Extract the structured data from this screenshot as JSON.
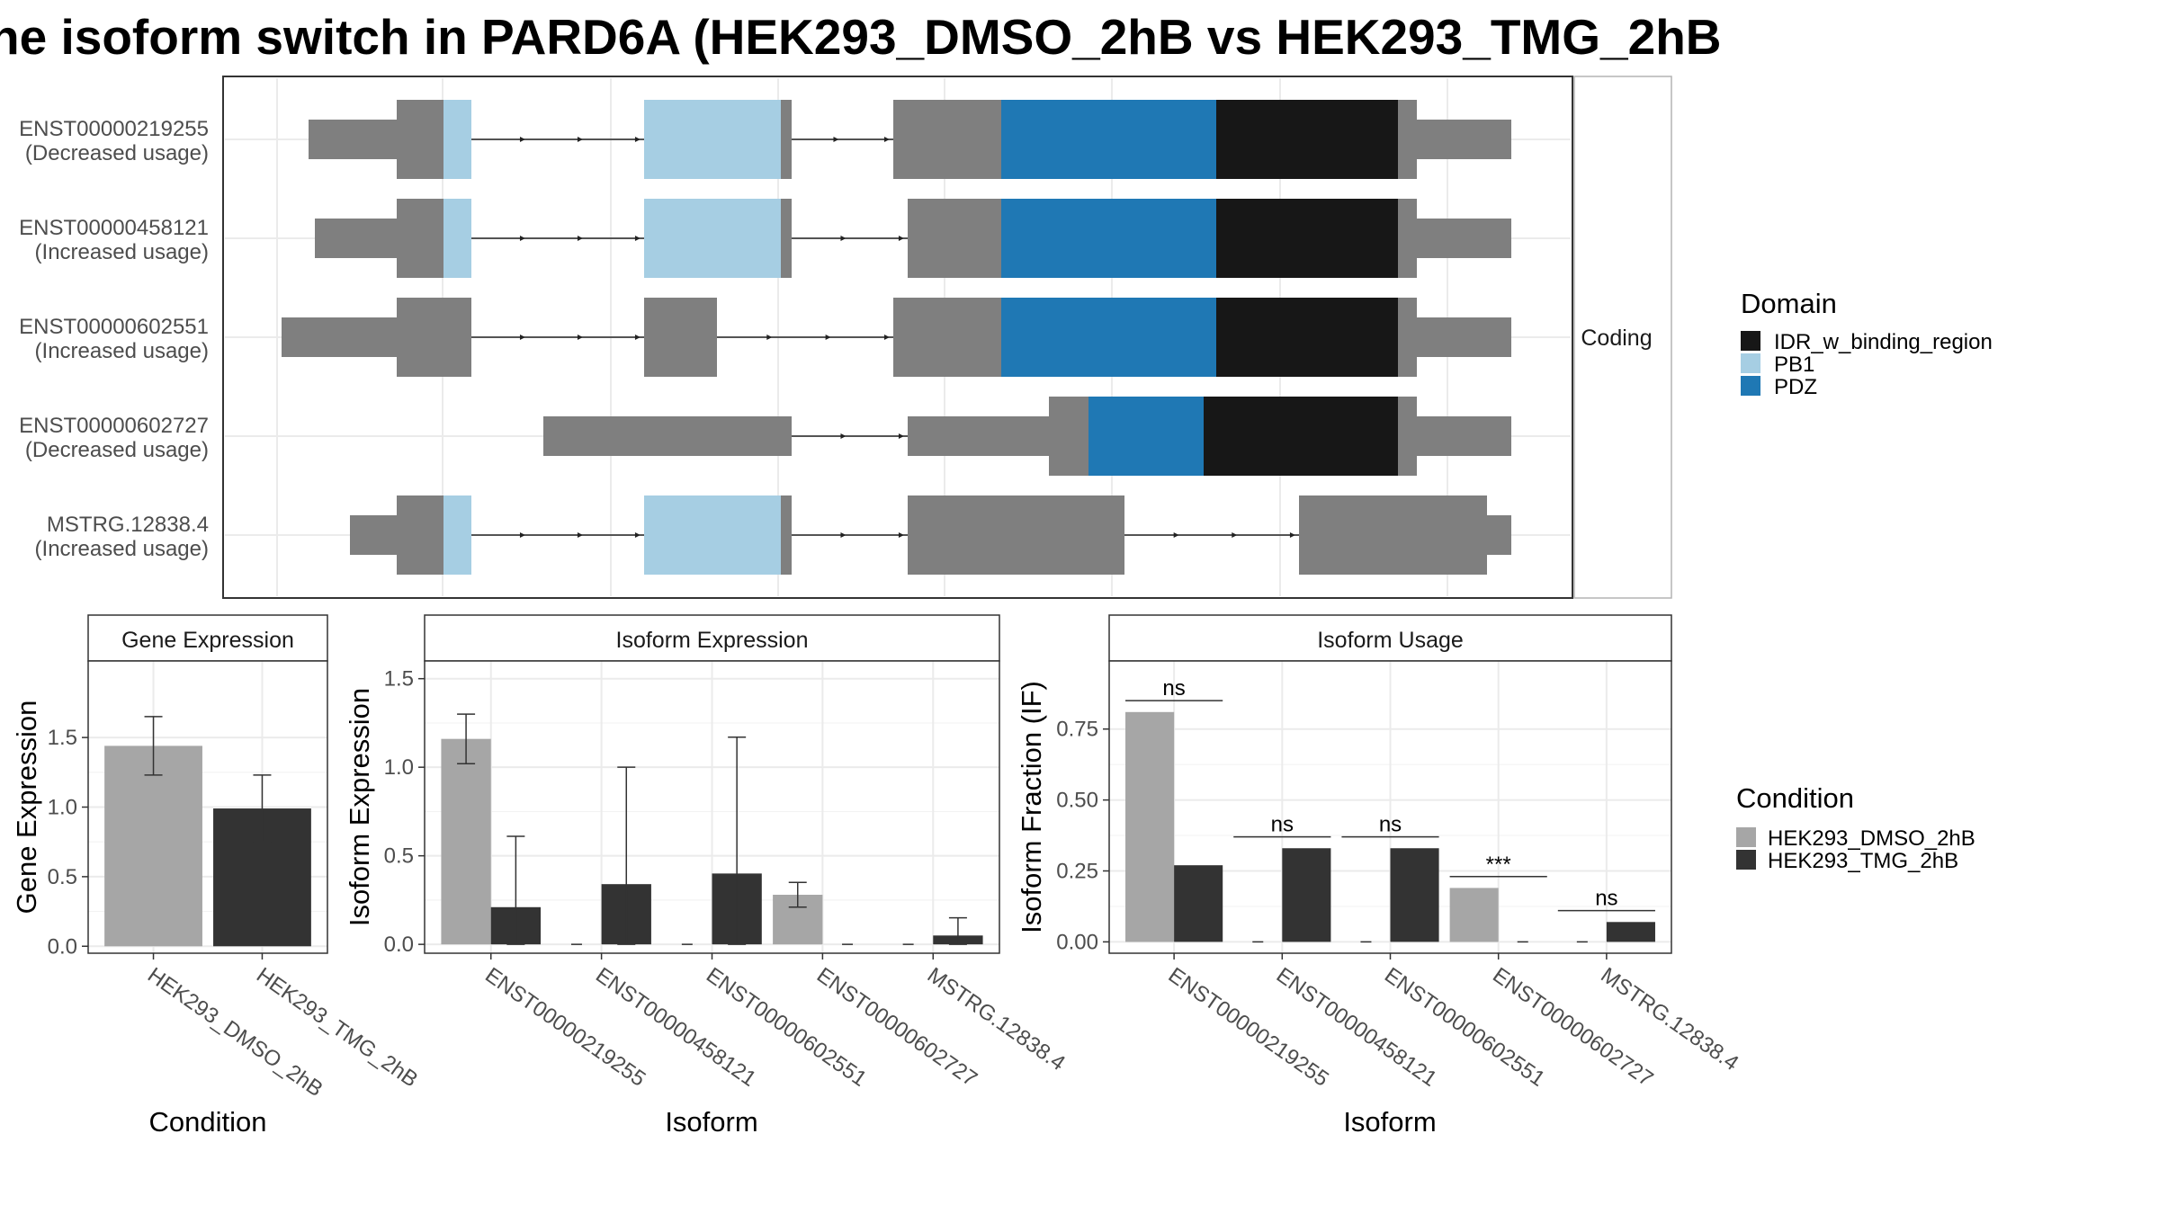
{
  "title": "he isoform switch in PARD6A (HEK293_DMSO_2hB vs HEK293_TMG_2hB",
  "colors": {
    "exon": "#7f7f7f",
    "IDR_w_binding_region": "#171717",
    "PB1": "#a6cee3",
    "PDZ": "#1f78b4",
    "HEK293_DMSO_2hB": "#a6a6a6",
    "HEK293_TMG_2hB": "#333333",
    "grid": "#ebebeb"
  },
  "structure": {
    "facet_label": "Coding",
    "transcripts": [
      {
        "id": "ENST00000219255",
        "usage": "(Decreased usage)"
      },
      {
        "id": "ENST00000458121",
        "usage": "(Increased usage)"
      },
      {
        "id": "ENST00000602551",
        "usage": "(Increased usage)"
      },
      {
        "id": "ENST00000602727",
        "usage": "(Decreased usage)"
      },
      {
        "id": "MSTRG.12838.4",
        "usage": "(Increased usage)"
      }
    ]
  },
  "legends": {
    "domain_title": "Domain",
    "domain_items": [
      "IDR_w_binding_region",
      "PB1",
      "PDZ"
    ],
    "condition_title": "Condition",
    "condition_items": [
      "HEK293_DMSO_2hB",
      "HEK293_TMG_2hB"
    ]
  },
  "chart_data": [
    {
      "type": "bar",
      "panel": "Gene Expression",
      "title": "Gene Expression",
      "xlabel": "Condition",
      "ylabel": "Gene Expression",
      "categories": [
        "HEK293_DMSO_2hB",
        "HEK293_TMG_2hB"
      ],
      "values": [
        1.44,
        0.99
      ],
      "error_low": [
        1.23,
        0.75
      ],
      "error_high": [
        1.65,
        1.23
      ],
      "yticks": [
        0.0,
        0.5,
        1.0,
        1.5
      ],
      "ytick_labels": [
        "0.0",
        "0.5",
        "1.0",
        "1.5"
      ],
      "ylim": [
        -0.05,
        2.05
      ]
    },
    {
      "type": "bar",
      "panel": "Isoform Expression",
      "title": "Isoform Expression",
      "xlabel": "Isoform",
      "ylabel": "Isoform Expression",
      "categories": [
        "ENST00000219255",
        "ENST00000458121",
        "ENST00000602551",
        "ENST00000602727",
        "MSTRG.12838.4"
      ],
      "series": [
        {
          "name": "HEK293_DMSO_2hB",
          "values": [
            1.16,
            0.0,
            0.0,
            0.28,
            0.0
          ],
          "error_low": [
            1.02,
            null,
            null,
            0.21,
            null
          ],
          "error_high": [
            1.3,
            null,
            null,
            0.35,
            null
          ]
        },
        {
          "name": "HEK293_TMG_2hB",
          "values": [
            0.21,
            0.34,
            0.4,
            0.0,
            0.05
          ],
          "error_low": [
            0.0,
            0.0,
            0.0,
            null,
            0.0
          ],
          "error_high": [
            0.61,
            1.0,
            1.17,
            null,
            0.15
          ]
        }
      ],
      "yticks": [
        0.0,
        0.5,
        1.0,
        1.5
      ],
      "ytick_labels": [
        "0.0",
        "0.5",
        "1.0",
        "1.5"
      ],
      "ylim": [
        -0.05,
        1.6
      ]
    },
    {
      "type": "bar",
      "panel": "Isoform Usage",
      "title": "Isoform Usage",
      "xlabel": "Isoform",
      "ylabel": "Isoform Fraction (IF)",
      "categories": [
        "ENST00000219255",
        "ENST00000458121",
        "ENST00000602551",
        "ENST00000602727",
        "MSTRG.12838.4"
      ],
      "series": [
        {
          "name": "HEK293_DMSO_2hB",
          "values": [
            0.81,
            0.0,
            0.0,
            0.19,
            0.0
          ]
        },
        {
          "name": "HEK293_TMG_2hB",
          "values": [
            0.27,
            0.33,
            0.33,
            0.0,
            0.07
          ]
        }
      ],
      "significance": [
        "ns",
        "ns",
        "ns",
        "***",
        "ns"
      ],
      "significance_y": [
        0.85,
        0.37,
        0.37,
        0.23,
        0.11
      ],
      "yticks": [
        0.0,
        0.25,
        0.5,
        0.75
      ],
      "ytick_labels": [
        "0.00",
        "0.25",
        "0.50",
        "0.75"
      ],
      "ylim": [
        -0.04,
        0.99
      ]
    }
  ]
}
